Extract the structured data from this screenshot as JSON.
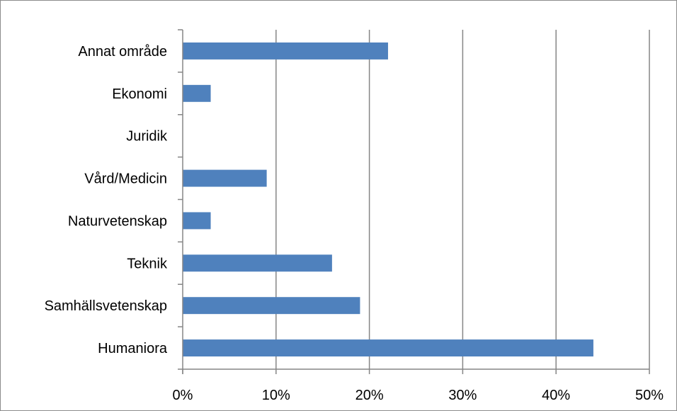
{
  "chart_data": {
    "type": "bar",
    "orientation": "horizontal",
    "title": "",
    "xlabel": "",
    "ylabel": "",
    "categories": [
      "Humaniora",
      "Samhällsvetenskap",
      "Teknik",
      "Naturvetenskap",
      "Vård/Medicin",
      "Juridik",
      "Ekonomi",
      "Annat område"
    ],
    "values": [
      44,
      19,
      16,
      3,
      9,
      0,
      3,
      22
    ],
    "value_unit": "percent",
    "xlim": [
      0,
      50
    ],
    "x_ticks": [
      0,
      10,
      20,
      30,
      40,
      50
    ],
    "x_tick_labels": [
      "0%",
      "10%",
      "20%",
      "30%",
      "40%",
      "50%"
    ],
    "grid": "vertical major gridlines",
    "legend": "none",
    "bar_color": "#4F81BD",
    "grid_color": "#868686",
    "axis_color": "#868686"
  }
}
